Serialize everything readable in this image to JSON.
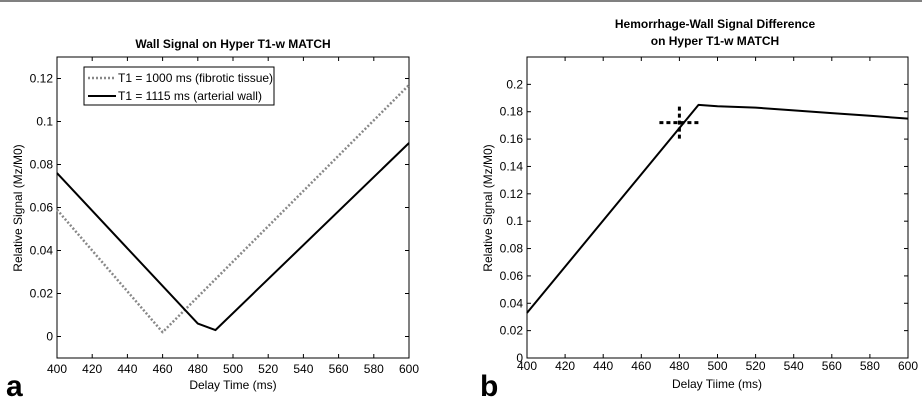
{
  "chart_data": [
    {
      "type": "line",
      "panel_label": "a",
      "title": "Wall Signal on Hyper T1-w MATCH",
      "xlabel": "Delay Time (ms)",
      "ylabel": "Relative Signal (Mz/M0)",
      "xlim": [
        400,
        600
      ],
      "ylim": [
        -0.01,
        0.13
      ],
      "xticks": [
        "400",
        "420",
        "440",
        "460",
        "480",
        "500",
        "520",
        "540",
        "560",
        "580",
        "600"
      ],
      "yticks": [
        "0",
        "0.02",
        "0.04",
        "0.06",
        "0.08",
        "0.1",
        "0.12"
      ],
      "legend_position": "top-left",
      "series": [
        {
          "name": "T1 = 1000 ms (fibrotic tissue)",
          "style": "dotted",
          "color": "#888888",
          "x": [
            400,
            460,
            600
          ],
          "y": [
            0.059,
            0.002,
            0.117
          ]
        },
        {
          "name": "T1 = 1115 ms (arterial wall)",
          "style": "solid",
          "color": "#000000",
          "x": [
            400,
            480,
            490,
            600
          ],
          "y": [
            0.076,
            0.006,
            0.003,
            0.09
          ]
        }
      ]
    },
    {
      "type": "line",
      "panel_label": "b",
      "title": "Hemorrhage-Wall Signal Difference",
      "subtitle": "on Hyper T1-w MATCH",
      "xlabel": "Delay Tiime (ms)",
      "ylabel": "Relative Signal (Mz/M0)",
      "xlim": [
        400,
        600
      ],
      "ylim": [
        0,
        0.22
      ],
      "xticks": [
        "400",
        "420",
        "440",
        "460",
        "480",
        "500",
        "520",
        "540",
        "560",
        "580",
        "600"
      ],
      "yticks": [
        "0",
        "0.02",
        "0.04",
        "0.06",
        "0.08",
        "0.1",
        "0.12",
        "0.14",
        "0.16",
        "0.18",
        "0.2"
      ],
      "series": [
        {
          "style": "solid",
          "color": "#000000",
          "x": [
            400,
            490,
            500,
            520,
            540,
            560,
            580,
            600
          ],
          "y": [
            0.033,
            0.185,
            0.184,
            0.183,
            0.181,
            0.179,
            0.177,
            0.175
          ]
        }
      ],
      "marker": {
        "x": 480,
        "y": 0.172,
        "style": "dotted-cross",
        "color": "#000000"
      }
    }
  ]
}
